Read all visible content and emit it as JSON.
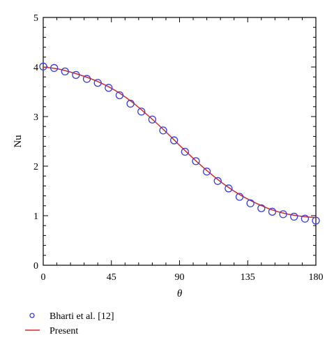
{
  "colors": {
    "marker": "#3b3bdc",
    "line": "#d42a2a",
    "axis": "#000000"
  },
  "chart_data": {
    "type": "line",
    "xlabel": "θ",
    "ylabel": "Nu",
    "xlim": [
      0,
      180
    ],
    "ylim": [
      0,
      5
    ],
    "x_ticks": [
      0,
      45,
      90,
      135,
      180
    ],
    "y_ticks": [
      0,
      1,
      2,
      3,
      4,
      5
    ],
    "x_tick_labels": [
      "0",
      "45",
      "90",
      "135",
      "180"
    ],
    "y_tick_labels": [
      "0",
      "1",
      "2",
      "3",
      "4",
      "5"
    ],
    "grid": false,
    "legend_position": "bottom-left, below plot",
    "series": [
      {
        "name": "Bharti et al. [12]",
        "style": "markers",
        "marker": "open-circle",
        "x": [
          0,
          7.2,
          14.4,
          21.6,
          28.8,
          36,
          43.2,
          50.4,
          57.6,
          64.8,
          72,
          79.2,
          86.4,
          93.6,
          100.8,
          108,
          115.2,
          122.4,
          129.6,
          136.8,
          144,
          151.2,
          158.4,
          165.6,
          172.8,
          180
        ],
        "y": [
          4.01,
          3.98,
          3.91,
          3.84,
          3.76,
          3.68,
          3.58,
          3.43,
          3.26,
          3.1,
          2.94,
          2.72,
          2.52,
          2.29,
          2.1,
          1.89,
          1.7,
          1.55,
          1.38,
          1.25,
          1.15,
          1.08,
          1.03,
          0.98,
          0.94,
          0.9
        ]
      },
      {
        "name": "Present",
        "style": "line",
        "x": [
          0,
          10,
          20,
          30,
          40,
          50,
          60,
          70,
          80,
          90,
          100,
          110,
          120,
          130,
          140,
          150,
          160,
          170,
          180
        ],
        "y": [
          4.0,
          3.96,
          3.88,
          3.78,
          3.65,
          3.48,
          3.26,
          3.0,
          2.72,
          2.42,
          2.13,
          1.86,
          1.62,
          1.42,
          1.26,
          1.13,
          1.04,
          0.99,
          0.96
        ]
      }
    ]
  }
}
